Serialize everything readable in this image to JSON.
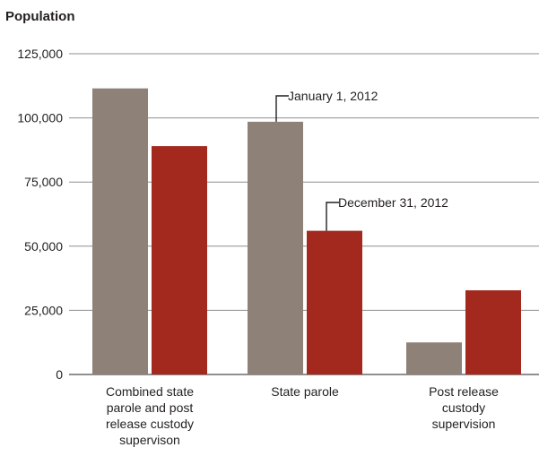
{
  "chart_data": {
    "type": "bar",
    "title": "Population",
    "categories": [
      [
        "Combined state",
        "parole and post",
        "release custody",
        "supervison"
      ],
      [
        "State parole"
      ],
      [
        "Post release",
        "custody",
        "supervision"
      ]
    ],
    "series": [
      {
        "name": "January 1, 2012",
        "color": "#8d8178",
        "values": [
          111500,
          98500,
          12500
        ]
      },
      {
        "name": "December 31, 2012",
        "color": "#a3281d",
        "values": [
          89000,
          56000,
          32800
        ]
      }
    ],
    "ylim": [
      0,
      125000
    ],
    "yticks": [
      "0",
      "25,000",
      "50,000",
      "75,000",
      "100,000",
      "125,000"
    ],
    "ytick_values": [
      0,
      25000,
      50000,
      75000,
      100000,
      125000
    ],
    "grid": true,
    "legend": "callouts on bars of State parole group"
  }
}
